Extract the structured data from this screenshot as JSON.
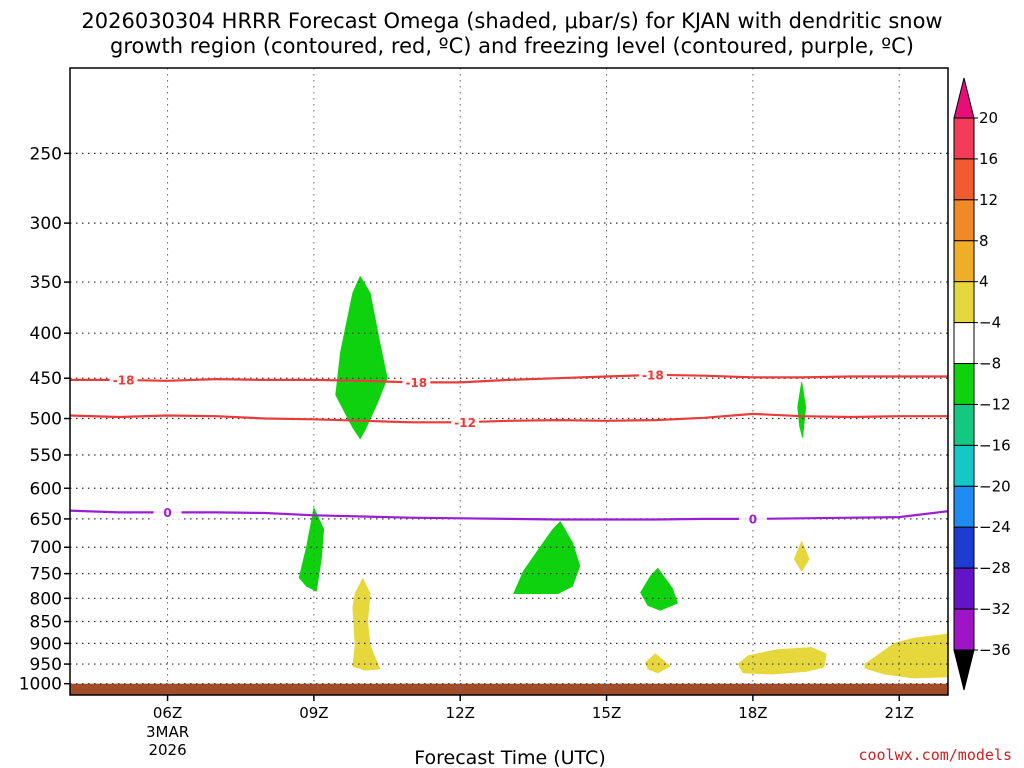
{
  "chart_data": {
    "type": "heatmap",
    "title_lines": [
      "2026030304 HRRR Forecast Omega (shaded, μbar/s) for KJAN with dendritic snow",
      "growth region (contoured, red, ºC) and freezing level (contoured, purple, ºC)"
    ],
    "xlabel": "Forecast Time (UTC)",
    "ylabel": "",
    "credit": "coolwx.com/models",
    "x_ticks": [
      {
        "t": 6,
        "label": "06Z",
        "sub": [
          "3MAR",
          "2026"
        ]
      },
      {
        "t": 9,
        "label": "09Z",
        "sub": []
      },
      {
        "t": 12,
        "label": "12Z",
        "sub": []
      },
      {
        "t": 15,
        "label": "15Z",
        "sub": []
      },
      {
        "t": 18,
        "label": "18Z",
        "sub": []
      },
      {
        "t": 21,
        "label": "21Z",
        "sub": []
      }
    ],
    "xlim": [
      4,
      22
    ],
    "y_ticks": [
      250,
      300,
      350,
      400,
      450,
      500,
      550,
      600,
      650,
      700,
      750,
      800,
      850,
      900,
      950,
      1000
    ],
    "ylim_hpa": [
      200,
      1030
    ],
    "y_scale": "log-pressure",
    "grid": true,
    "colorbar": {
      "levels": [
        "20",
        "16",
        "12",
        "8",
        "4",
        "−4",
        "−8",
        "−12",
        "−16",
        "−20",
        "−24",
        "−28",
        "−32",
        "−36"
      ],
      "colors": [
        "#f23c5a",
        "#f25a32",
        "#f08a28",
        "#f0ae28",
        "#e6d83c",
        "#ffffff",
        "#0fd20f",
        "#14c882",
        "#14c8c8",
        "#1e8cf0",
        "#1e3cd2",
        "#6414c8",
        "#a014c8",
        "#a0a0a0"
      ],
      "top_color": "#e60f78",
      "bottom_color": "#000000"
    },
    "omega_regions": [
      {
        "name": "green-blob-10z",
        "color": "#0fd20f",
        "points": [
          [
            9.45,
            470
          ],
          [
            9.55,
            420
          ],
          [
            9.8,
            360
          ],
          [
            9.95,
            345
          ],
          [
            10.15,
            360
          ],
          [
            10.35,
            410
          ],
          [
            10.5,
            450
          ],
          [
            10.3,
            480
          ],
          [
            10.05,
            515
          ],
          [
            9.95,
            527
          ],
          [
            9.8,
            512
          ]
        ]
      },
      {
        "name": "green-sliver-19z",
        "color": "#0fd20f",
        "points": [
          [
            18.92,
            485
          ],
          [
            19.0,
            455
          ],
          [
            19.08,
            485
          ],
          [
            19.02,
            525
          ],
          [
            18.96,
            510
          ]
        ]
      },
      {
        "name": "green-sliver-9z",
        "color": "#0fd20f",
        "points": [
          [
            8.7,
            758
          ],
          [
            8.85,
            700
          ],
          [
            8.95,
            655
          ],
          [
            9.0,
            632
          ],
          [
            9.2,
            668
          ],
          [
            9.15,
            722
          ],
          [
            9.05,
            785
          ],
          [
            8.85,
            775
          ]
        ]
      },
      {
        "name": "green-blob-14z",
        "color": "#0fd20f",
        "points": [
          [
            13.1,
            790
          ],
          [
            13.3,
            745
          ],
          [
            13.6,
            705
          ],
          [
            13.9,
            668
          ],
          [
            14.05,
            655
          ],
          [
            14.3,
            692
          ],
          [
            14.45,
            735
          ],
          [
            14.3,
            775
          ],
          [
            14.0,
            790
          ]
        ]
      },
      {
        "name": "green-blob-16z",
        "color": "#0fd20f",
        "points": [
          [
            15.7,
            788
          ],
          [
            15.9,
            755
          ],
          [
            16.05,
            740
          ],
          [
            16.35,
            780
          ],
          [
            16.45,
            810
          ],
          [
            16.1,
            825
          ],
          [
            15.85,
            815
          ]
        ]
      },
      {
        "name": "yellow-sliver-10z",
        "color": "#e6d83c",
        "points": [
          [
            9.8,
            820
          ],
          [
            9.85,
            790
          ],
          [
            10.0,
            760
          ],
          [
            10.15,
            790
          ],
          [
            10.1,
            850
          ],
          [
            10.15,
            905
          ],
          [
            10.35,
            962
          ],
          [
            10.05,
            965
          ],
          [
            9.8,
            955
          ],
          [
            9.85,
            905
          ]
        ]
      },
      {
        "name": "yellow-drop-19z",
        "color": "#e6d83c",
        "points": [
          [
            18.85,
            722
          ],
          [
            19.0,
            690
          ],
          [
            19.15,
            722
          ],
          [
            19.0,
            745
          ]
        ]
      },
      {
        "name": "yellow-drop-16z",
        "color": "#e6d83c",
        "points": [
          [
            15.8,
            947
          ],
          [
            16.0,
            925
          ],
          [
            16.3,
            955
          ],
          [
            16.05,
            972
          ],
          [
            15.85,
            962
          ]
        ]
      },
      {
        "name": "yellow-blob-19z",
        "color": "#e6d83c",
        "points": [
          [
            17.7,
            950
          ],
          [
            17.9,
            930
          ],
          [
            18.5,
            915
          ],
          [
            19.2,
            910
          ],
          [
            19.5,
            925
          ],
          [
            19.45,
            958
          ],
          [
            19.1,
            968
          ],
          [
            18.4,
            975
          ],
          [
            17.8,
            972
          ]
        ]
      },
      {
        "name": "yellow-blob-21z",
        "color": "#e6d83c",
        "points": [
          [
            20.3,
            950
          ],
          [
            20.6,
            925
          ],
          [
            20.9,
            900
          ],
          [
            21.3,
            888
          ],
          [
            21.9,
            880
          ],
          [
            22.0,
            878
          ],
          [
            22.0,
            982
          ],
          [
            21.3,
            985
          ],
          [
            20.7,
            975
          ],
          [
            20.3,
            960
          ]
        ]
      }
    ],
    "contours": [
      {
        "name": "dgz-minus18",
        "color": "#e83b3b",
        "label": "-18",
        "points": [
          [
            4,
            452
          ],
          [
            5,
            452
          ],
          [
            6,
            453
          ],
          [
            7,
            451
          ],
          [
            8,
            452
          ],
          [
            9,
            452
          ],
          [
            10,
            453
          ],
          [
            11,
            455
          ],
          [
            12,
            455
          ],
          [
            13,
            452
          ],
          [
            14,
            450
          ],
          [
            15,
            448
          ],
          [
            16,
            446
          ],
          [
            17,
            447
          ],
          [
            18,
            449
          ],
          [
            19,
            449
          ],
          [
            20,
            448
          ],
          [
            21,
            448
          ],
          [
            22,
            448
          ]
        ],
        "label_positions": [
          [
            5.1,
            452
          ],
          [
            11.1,
            455
          ],
          [
            15.95,
            446
          ]
        ]
      },
      {
        "name": "dgz-minus12",
        "color": "#e83b3b",
        "label": "-12",
        "points": [
          [
            4,
            496
          ],
          [
            5,
            498
          ],
          [
            6,
            496
          ],
          [
            7,
            497
          ],
          [
            8,
            500
          ],
          [
            9,
            501
          ],
          [
            10,
            503
          ],
          [
            11,
            505
          ],
          [
            12,
            505
          ],
          [
            13,
            503
          ],
          [
            14,
            502
          ],
          [
            15,
            503
          ],
          [
            16,
            502
          ],
          [
            17,
            499
          ],
          [
            18,
            494
          ],
          [
            19,
            497
          ],
          [
            20,
            498
          ],
          [
            21,
            497
          ],
          [
            22,
            497
          ]
        ],
        "label_positions": [
          [
            12.1,
            505
          ]
        ]
      },
      {
        "name": "freezing-level-0",
        "color": "#9a1fd0",
        "label": "0",
        "points": [
          [
            4,
            636
          ],
          [
            5,
            639
          ],
          [
            6,
            639
          ],
          [
            7,
            639
          ],
          [
            8,
            640
          ],
          [
            9,
            644
          ],
          [
            10,
            646
          ],
          [
            11,
            648
          ],
          [
            12,
            649
          ],
          [
            13,
            650
          ],
          [
            14,
            651
          ],
          [
            15,
            651
          ],
          [
            16,
            651
          ],
          [
            17,
            650
          ],
          [
            18,
            650
          ],
          [
            19,
            649
          ],
          [
            20,
            648
          ],
          [
            21,
            647
          ],
          [
            22,
            637
          ]
        ],
        "label_positions": [
          [
            6.0,
            639
          ],
          [
            18.0,
            650
          ]
        ]
      }
    ],
    "ground": {
      "color": "#a14d2a",
      "top_hpa": 1000
    }
  }
}
